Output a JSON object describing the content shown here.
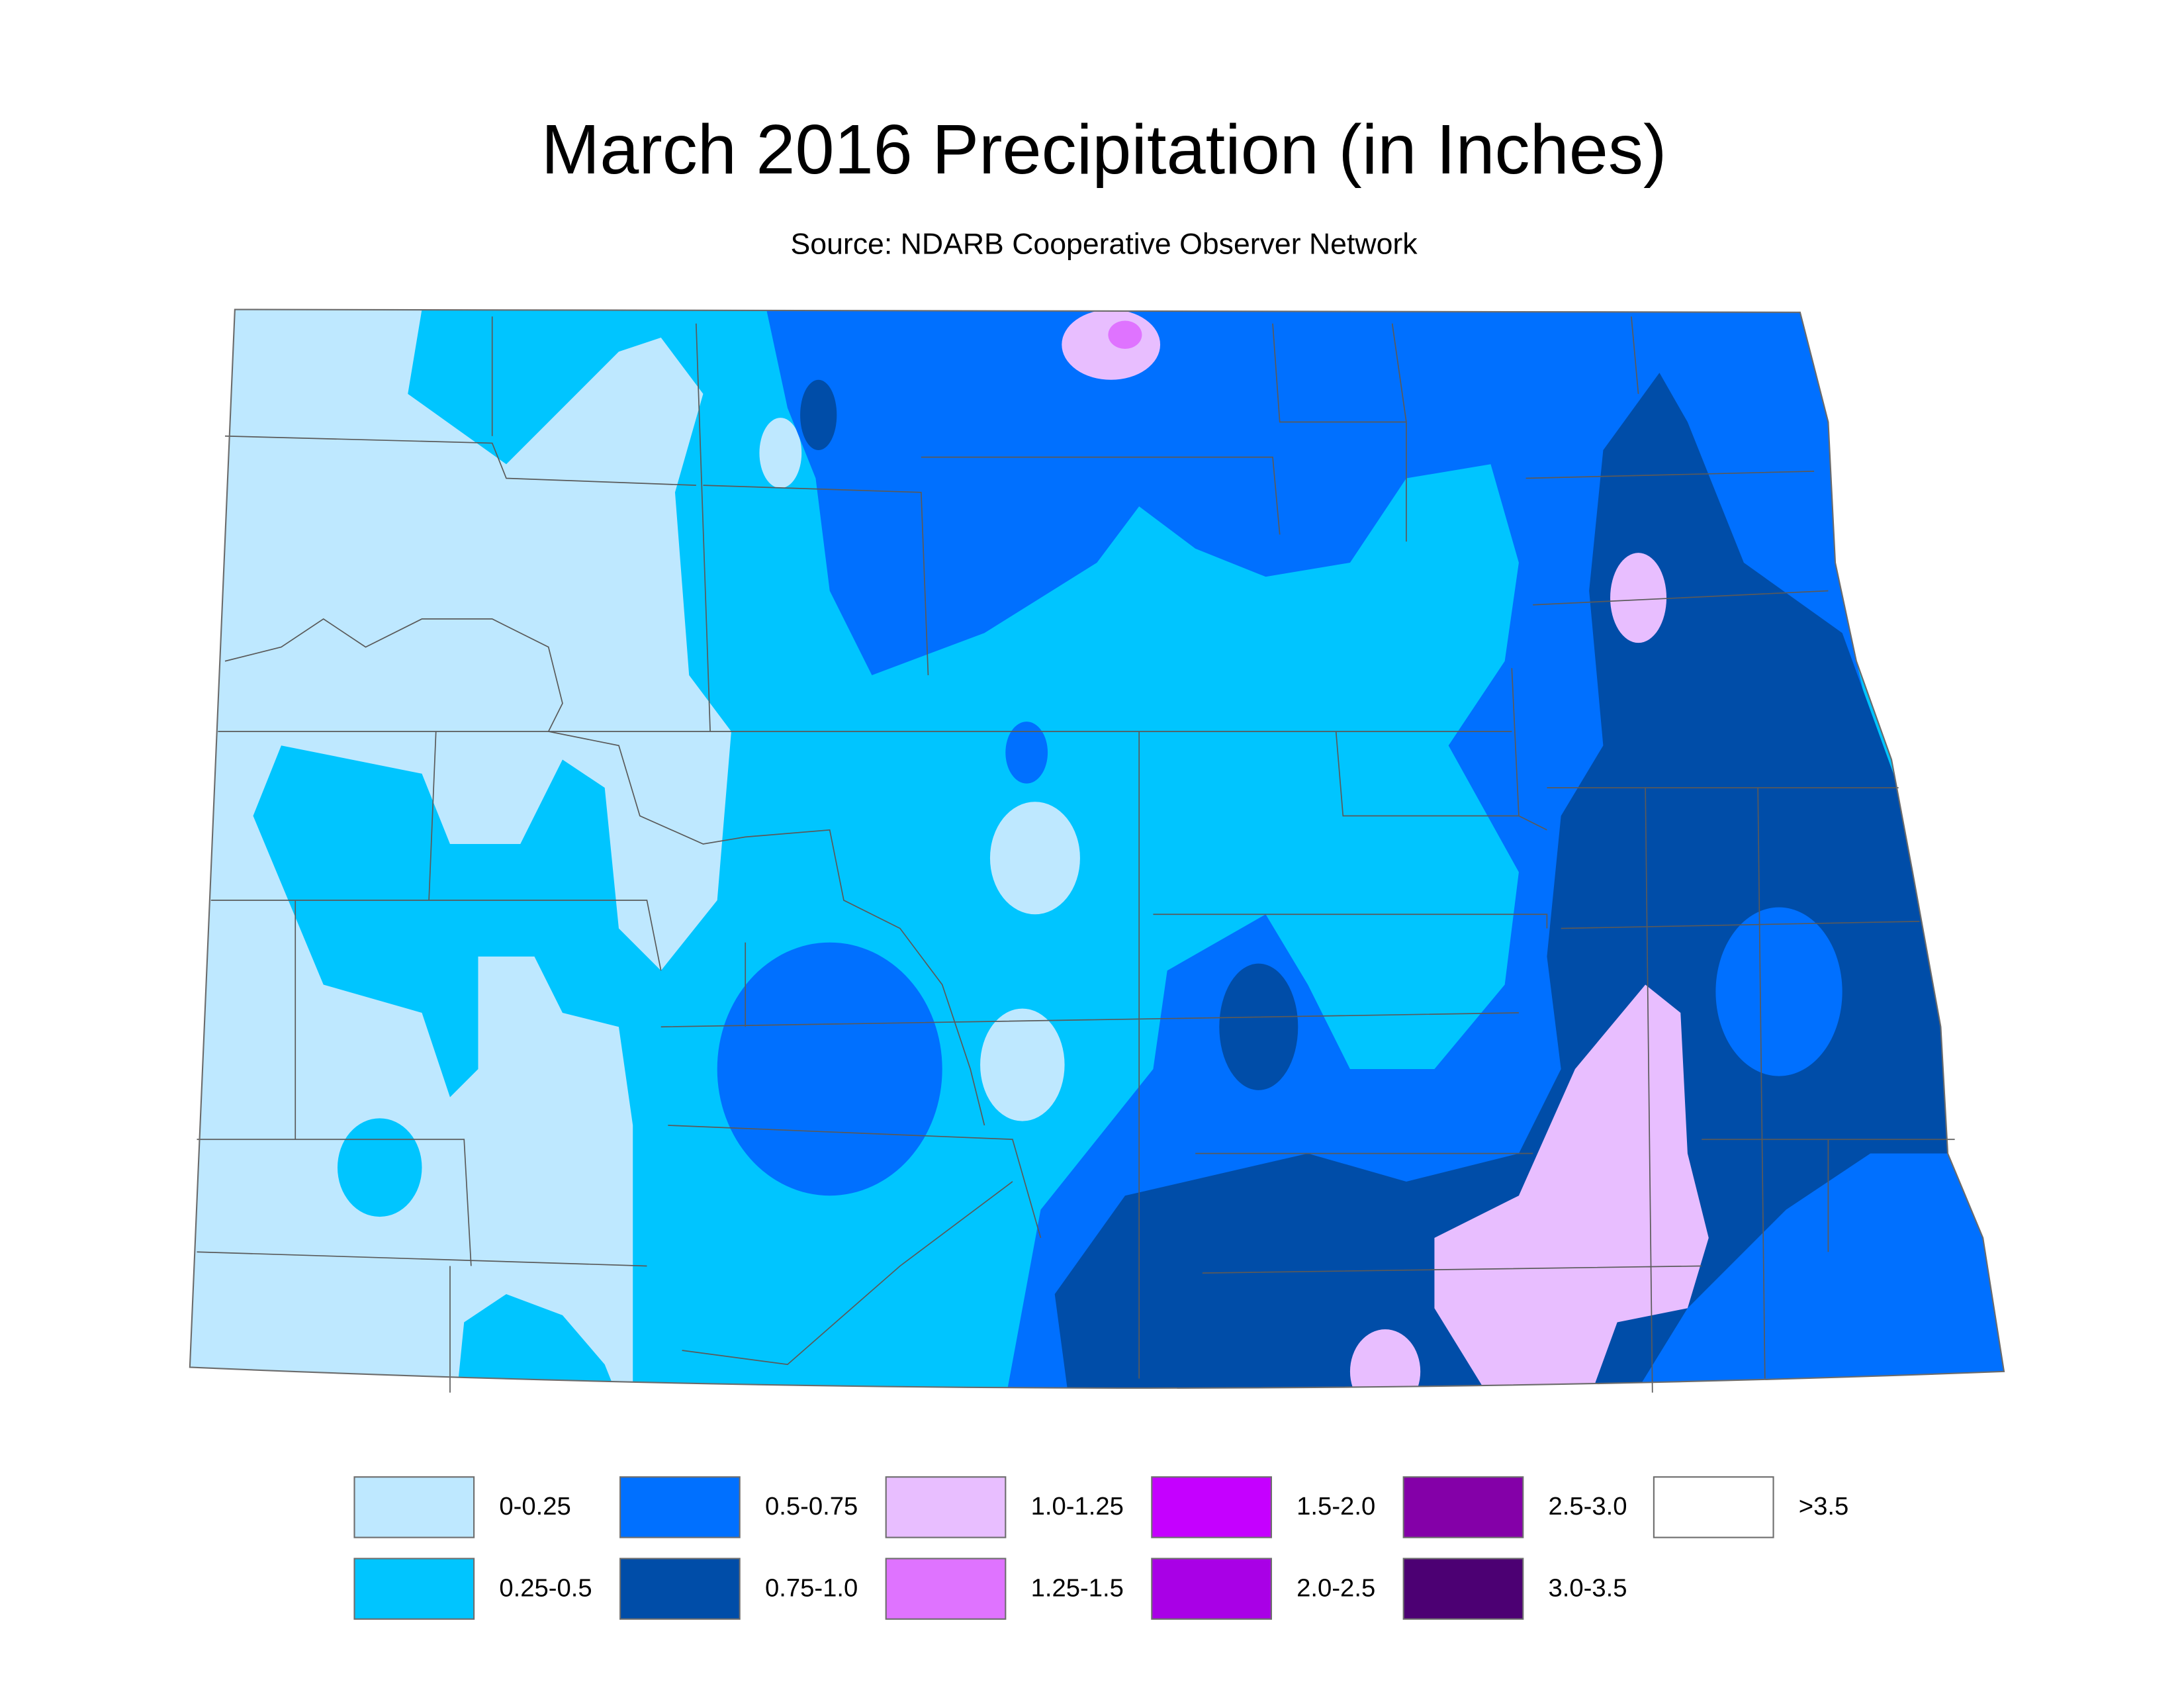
{
  "title": "March 2016 Precipitation (in Inches)",
  "subtitle": "Source: NDARB Cooperative Observer Network",
  "legend": {
    "items": [
      {
        "label": "0-0.25",
        "color": "#bee8ff"
      },
      {
        "label": "0.25-0.5",
        "color": "#00c5ff"
      },
      {
        "label": "0.5-0.75",
        "color": "#0070ff"
      },
      {
        "label": "0.75-1.0",
        "color": "#004da8"
      },
      {
        "label": "1.0-1.25",
        "color": "#e8beff"
      },
      {
        "label": "1.25-1.5",
        "color": "#df73ff"
      },
      {
        "label": "1.5-2.0",
        "color": "#c500ff"
      },
      {
        "label": "2.0-2.5",
        "color": "#a900e6"
      },
      {
        "label": "2.5-3.0",
        "color": "#8400a8"
      },
      {
        "label": "3.0-3.5",
        "color": "#4c0073"
      },
      {
        "label": ">3.5",
        "color": "#ffffff"
      }
    ]
  }
}
